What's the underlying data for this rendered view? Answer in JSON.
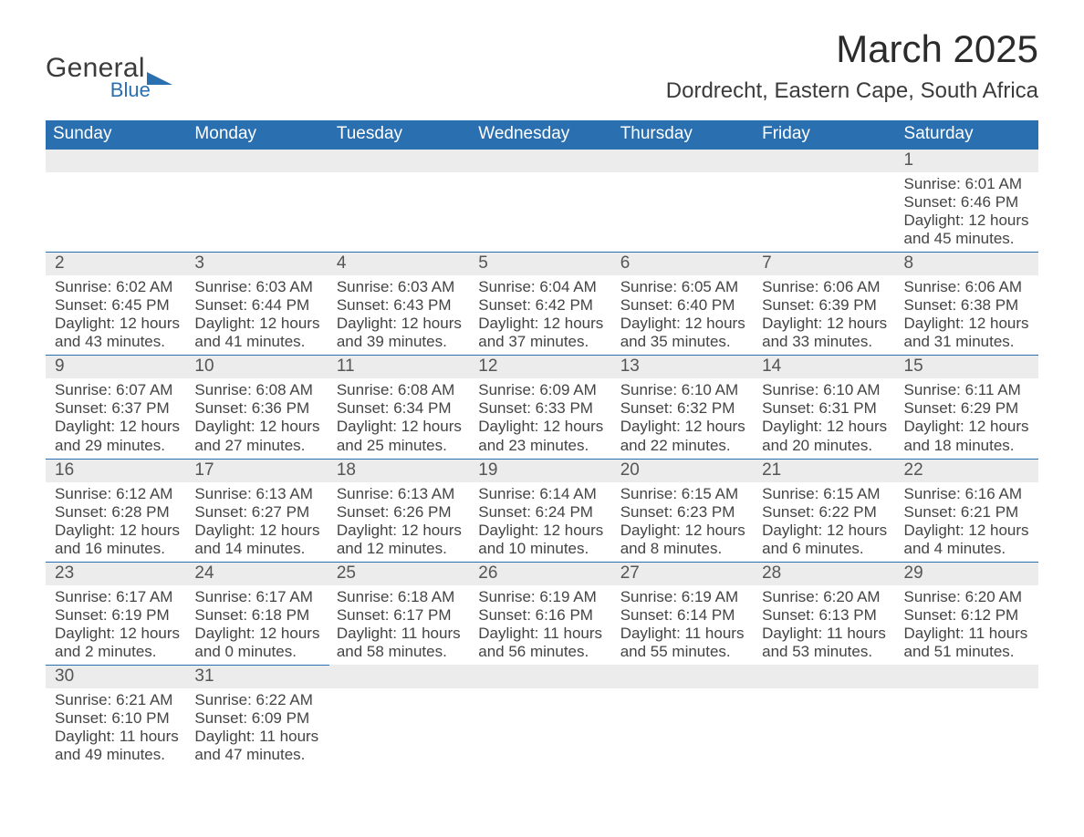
{
  "logo": {
    "general": "General",
    "blue": "Blue",
    "general_color": "#3b3b3b",
    "blue_color": "#2a6fb0",
    "shape_color": "#2a6fb0"
  },
  "title": "March 2025",
  "subtitle": "Dordrecht, Eastern Cape, South Africa",
  "colors": {
    "header_bg": "#2a6fb0",
    "header_text": "#ffffff",
    "daynum_bg": "#ececec",
    "daynum_text": "#555555",
    "border": "#2a6fb0",
    "body_text": "#444444",
    "page_bg": "#ffffff"
  },
  "day_headers": [
    "Sunday",
    "Monday",
    "Tuesday",
    "Wednesday",
    "Thursday",
    "Friday",
    "Saturday"
  ],
  "weeks": [
    [
      null,
      null,
      null,
      null,
      null,
      null,
      {
        "day": "1",
        "sunrise": "Sunrise: 6:01 AM",
        "sunset": "Sunset: 6:46 PM",
        "daylight1": "Daylight: 12 hours",
        "daylight2": "and 45 minutes."
      }
    ],
    [
      {
        "day": "2",
        "sunrise": "Sunrise: 6:02 AM",
        "sunset": "Sunset: 6:45 PM",
        "daylight1": "Daylight: 12 hours",
        "daylight2": "and 43 minutes."
      },
      {
        "day": "3",
        "sunrise": "Sunrise: 6:03 AM",
        "sunset": "Sunset: 6:44 PM",
        "daylight1": "Daylight: 12 hours",
        "daylight2": "and 41 minutes."
      },
      {
        "day": "4",
        "sunrise": "Sunrise: 6:03 AM",
        "sunset": "Sunset: 6:43 PM",
        "daylight1": "Daylight: 12 hours",
        "daylight2": "and 39 minutes."
      },
      {
        "day": "5",
        "sunrise": "Sunrise: 6:04 AM",
        "sunset": "Sunset: 6:42 PM",
        "daylight1": "Daylight: 12 hours",
        "daylight2": "and 37 minutes."
      },
      {
        "day": "6",
        "sunrise": "Sunrise: 6:05 AM",
        "sunset": "Sunset: 6:40 PM",
        "daylight1": "Daylight: 12 hours",
        "daylight2": "and 35 minutes."
      },
      {
        "day": "7",
        "sunrise": "Sunrise: 6:06 AM",
        "sunset": "Sunset: 6:39 PM",
        "daylight1": "Daylight: 12 hours",
        "daylight2": "and 33 minutes."
      },
      {
        "day": "8",
        "sunrise": "Sunrise: 6:06 AM",
        "sunset": "Sunset: 6:38 PM",
        "daylight1": "Daylight: 12 hours",
        "daylight2": "and 31 minutes."
      }
    ],
    [
      {
        "day": "9",
        "sunrise": "Sunrise: 6:07 AM",
        "sunset": "Sunset: 6:37 PM",
        "daylight1": "Daylight: 12 hours",
        "daylight2": "and 29 minutes."
      },
      {
        "day": "10",
        "sunrise": "Sunrise: 6:08 AM",
        "sunset": "Sunset: 6:36 PM",
        "daylight1": "Daylight: 12 hours",
        "daylight2": "and 27 minutes."
      },
      {
        "day": "11",
        "sunrise": "Sunrise: 6:08 AM",
        "sunset": "Sunset: 6:34 PM",
        "daylight1": "Daylight: 12 hours",
        "daylight2": "and 25 minutes."
      },
      {
        "day": "12",
        "sunrise": "Sunrise: 6:09 AM",
        "sunset": "Sunset: 6:33 PM",
        "daylight1": "Daylight: 12 hours",
        "daylight2": "and 23 minutes."
      },
      {
        "day": "13",
        "sunrise": "Sunrise: 6:10 AM",
        "sunset": "Sunset: 6:32 PM",
        "daylight1": "Daylight: 12 hours",
        "daylight2": "and 22 minutes."
      },
      {
        "day": "14",
        "sunrise": "Sunrise: 6:10 AM",
        "sunset": "Sunset: 6:31 PM",
        "daylight1": "Daylight: 12 hours",
        "daylight2": "and 20 minutes."
      },
      {
        "day": "15",
        "sunrise": "Sunrise: 6:11 AM",
        "sunset": "Sunset: 6:29 PM",
        "daylight1": "Daylight: 12 hours",
        "daylight2": "and 18 minutes."
      }
    ],
    [
      {
        "day": "16",
        "sunrise": "Sunrise: 6:12 AM",
        "sunset": "Sunset: 6:28 PM",
        "daylight1": "Daylight: 12 hours",
        "daylight2": "and 16 minutes."
      },
      {
        "day": "17",
        "sunrise": "Sunrise: 6:13 AM",
        "sunset": "Sunset: 6:27 PM",
        "daylight1": "Daylight: 12 hours",
        "daylight2": "and 14 minutes."
      },
      {
        "day": "18",
        "sunrise": "Sunrise: 6:13 AM",
        "sunset": "Sunset: 6:26 PM",
        "daylight1": "Daylight: 12 hours",
        "daylight2": "and 12 minutes."
      },
      {
        "day": "19",
        "sunrise": "Sunrise: 6:14 AM",
        "sunset": "Sunset: 6:24 PM",
        "daylight1": "Daylight: 12 hours",
        "daylight2": "and 10 minutes."
      },
      {
        "day": "20",
        "sunrise": "Sunrise: 6:15 AM",
        "sunset": "Sunset: 6:23 PM",
        "daylight1": "Daylight: 12 hours",
        "daylight2": "and 8 minutes."
      },
      {
        "day": "21",
        "sunrise": "Sunrise: 6:15 AM",
        "sunset": "Sunset: 6:22 PM",
        "daylight1": "Daylight: 12 hours",
        "daylight2": "and 6 minutes."
      },
      {
        "day": "22",
        "sunrise": "Sunrise: 6:16 AM",
        "sunset": "Sunset: 6:21 PM",
        "daylight1": "Daylight: 12 hours",
        "daylight2": "and 4 minutes."
      }
    ],
    [
      {
        "day": "23",
        "sunrise": "Sunrise: 6:17 AM",
        "sunset": "Sunset: 6:19 PM",
        "daylight1": "Daylight: 12 hours",
        "daylight2": "and 2 minutes."
      },
      {
        "day": "24",
        "sunrise": "Sunrise: 6:17 AM",
        "sunset": "Sunset: 6:18 PM",
        "daylight1": "Daylight: 12 hours",
        "daylight2": "and 0 minutes."
      },
      {
        "day": "25",
        "sunrise": "Sunrise: 6:18 AM",
        "sunset": "Sunset: 6:17 PM",
        "daylight1": "Daylight: 11 hours",
        "daylight2": "and 58 minutes."
      },
      {
        "day": "26",
        "sunrise": "Sunrise: 6:19 AM",
        "sunset": "Sunset: 6:16 PM",
        "daylight1": "Daylight: 11 hours",
        "daylight2": "and 56 minutes."
      },
      {
        "day": "27",
        "sunrise": "Sunrise: 6:19 AM",
        "sunset": "Sunset: 6:14 PM",
        "daylight1": "Daylight: 11 hours",
        "daylight2": "and 55 minutes."
      },
      {
        "day": "28",
        "sunrise": "Sunrise: 6:20 AM",
        "sunset": "Sunset: 6:13 PM",
        "daylight1": "Daylight: 11 hours",
        "daylight2": "and 53 minutes."
      },
      {
        "day": "29",
        "sunrise": "Sunrise: 6:20 AM",
        "sunset": "Sunset: 6:12 PM",
        "daylight1": "Daylight: 11 hours",
        "daylight2": "and 51 minutes."
      }
    ],
    [
      {
        "day": "30",
        "sunrise": "Sunrise: 6:21 AM",
        "sunset": "Sunset: 6:10 PM",
        "daylight1": "Daylight: 11 hours",
        "daylight2": "and 49 minutes."
      },
      {
        "day": "31",
        "sunrise": "Sunrise: 6:22 AM",
        "sunset": "Sunset: 6:09 PM",
        "daylight1": "Daylight: 11 hours",
        "daylight2": "and 47 minutes."
      },
      null,
      null,
      null,
      null,
      null
    ]
  ]
}
